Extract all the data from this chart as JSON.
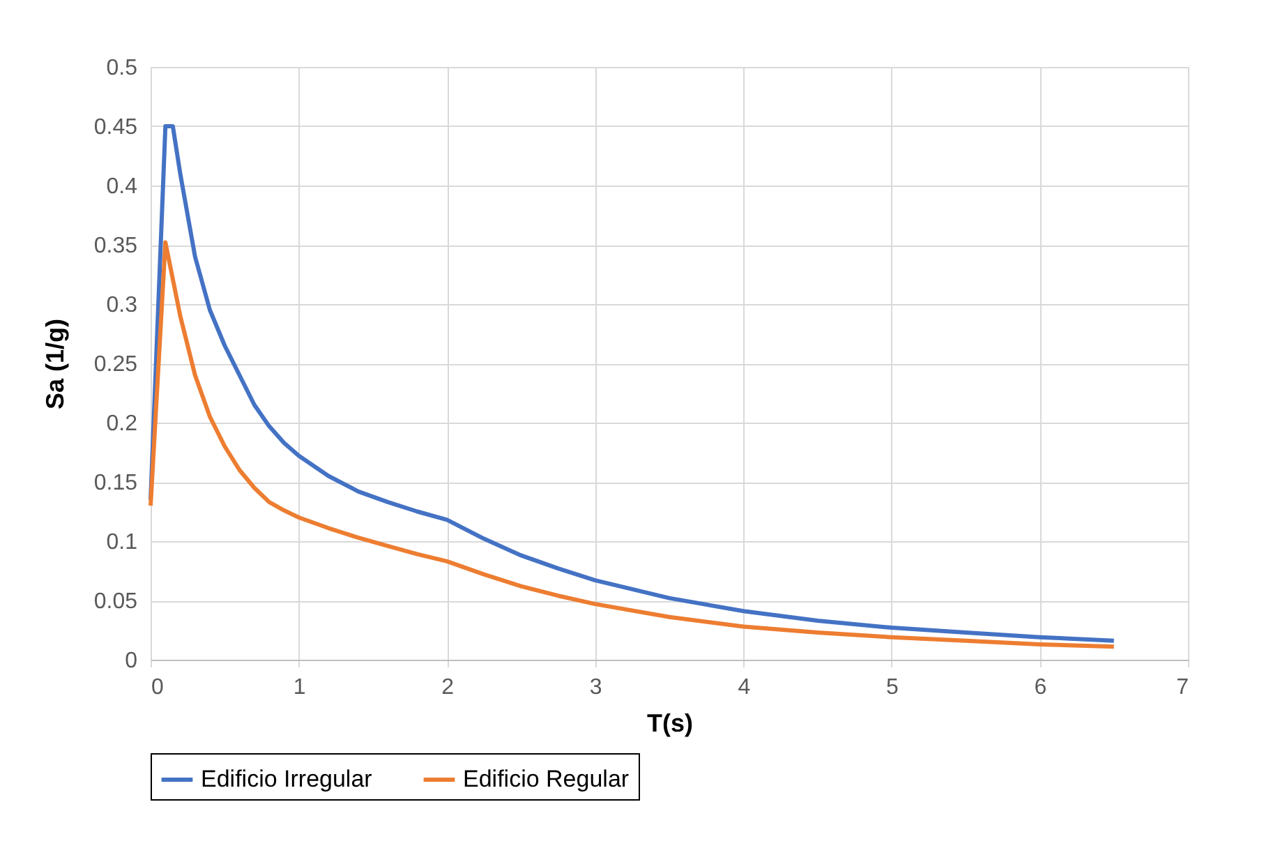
{
  "chart_data": {
    "type": "line",
    "xlabel": "T(s)",
    "ylabel": "Sa (1/g)",
    "xlim": [
      0,
      7
    ],
    "xticks": [
      0,
      1,
      2,
      3,
      4,
      5,
      6,
      7
    ],
    "ylim": [
      0,
      0.5
    ],
    "yticks": [
      0,
      0.05,
      0.1,
      0.15,
      0.2,
      0.25,
      0.3,
      0.35,
      0.4,
      0.45,
      0.5
    ],
    "grid": true,
    "legend": "bottom",
    "marker": "none",
    "line_style": "solid",
    "series": [
      {
        "name": "Edificio Irregular",
        "color": "#4472c4",
        "x": [
          0,
          0.1,
          0.15,
          0.2,
          0.3,
          0.4,
          0.5,
          0.6,
          0.7,
          0.8,
          0.9,
          1,
          1.2,
          1.4,
          1.6,
          1.8,
          2,
          2.25,
          2.5,
          2.75,
          3,
          3.5,
          4,
          4.5,
          5,
          5.5,
          6,
          6.5
        ],
        "values": [
          0.135,
          0.45,
          0.45,
          0.41,
          0.34,
          0.295,
          0.265,
          0.24,
          0.215,
          0.197,
          0.183,
          0.172,
          0.155,
          0.142,
          0.133,
          0.125,
          0.118,
          0.102,
          0.088,
          0.077,
          0.067,
          0.052,
          0.041,
          0.033,
          0.027,
          0.023,
          0.019,
          0.016
        ]
      },
      {
        "name": "Edificio Regular",
        "color": "#ed7d31",
        "x": [
          0,
          0.1,
          0.2,
          0.3,
          0.4,
          0.5,
          0.6,
          0.7,
          0.8,
          0.9,
          1,
          1.2,
          1.4,
          1.6,
          1.8,
          2,
          2.25,
          2.5,
          2.75,
          3,
          3.5,
          4,
          4.5,
          5,
          5.5,
          6,
          6.5
        ],
        "values": [
          0.13,
          0.352,
          0.29,
          0.24,
          0.205,
          0.18,
          0.16,
          0.145,
          0.133,
          0.126,
          0.12,
          0.111,
          0.103,
          0.096,
          0.089,
          0.083,
          0.072,
          0.062,
          0.054,
          0.047,
          0.036,
          0.028,
          0.023,
          0.019,
          0.016,
          0.013,
          0.011
        ]
      }
    ]
  }
}
